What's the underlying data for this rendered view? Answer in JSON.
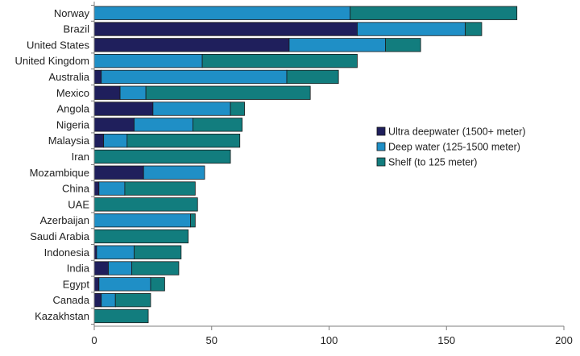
{
  "chart_data": {
    "type": "bar",
    "orientation": "horizontal",
    "stacked": true,
    "categories": [
      "Norway",
      "Brazil",
      "United States",
      "United Kingdom",
      "Australia",
      "Mexico",
      "Angola",
      "Nigeria",
      "Malaysia",
      "Iran",
      "Mozambique",
      "China",
      "UAE",
      "Azerbaijan",
      "Saudi Arabia",
      "Indonesia",
      "India",
      "Egypt",
      "Canada",
      "Kazakhstan"
    ],
    "series": [
      {
        "name": "Ultra deepwater (1500+ meter)",
        "color": "#1f1f5c",
        "values": [
          0,
          112,
          83,
          0,
          3,
          11,
          25,
          17,
          4,
          0,
          21,
          2,
          0,
          0,
          0,
          1,
          6,
          2,
          3,
          0
        ]
      },
      {
        "name": "Deep water (125-1500 meter)",
        "color": "#1f8fc6",
        "values": [
          109,
          46,
          41,
          46,
          79,
          11,
          33,
          25,
          10,
          0,
          26,
          11,
          0,
          41,
          0,
          16,
          10,
          22,
          6,
          0
        ]
      },
      {
        "name": "Shelf (to 125 meter)",
        "color": "#127d7e",
        "values": [
          71,
          7,
          15,
          66,
          22,
          70,
          6,
          21,
          48,
          58,
          0,
          30,
          44,
          2,
          40,
          20,
          20,
          6,
          15,
          23
        ]
      }
    ],
    "xlim": [
      0,
      200
    ],
    "xticks": [
      "0",
      "50",
      "100",
      "150",
      "200"
    ],
    "grid": false,
    "legend": "right-center"
  }
}
